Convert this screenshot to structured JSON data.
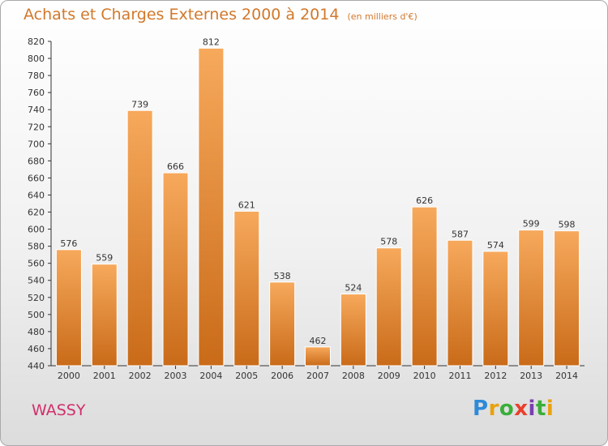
{
  "header": {
    "title": "Achats et Charges Externes 2000 à 2014",
    "unit": "(en milliers d'€)"
  },
  "footer": {
    "commune": "WASSY",
    "logo": "Proxiti"
  },
  "colors": {
    "bar_top": "#f7a95c",
    "bar_bottom": "#c96b19",
    "title": "#d2782a",
    "commune": "#d12f6b"
  },
  "chart_data": {
    "type": "bar",
    "title": "Achats et Charges Externes 2000 à 2014",
    "subtitle": "(en milliers d'€)",
    "categories": [
      "2000",
      "2001",
      "2002",
      "2003",
      "2004",
      "2005",
      "2006",
      "2007",
      "2008",
      "2009",
      "2010",
      "2011",
      "2012",
      "2013",
      "2014"
    ],
    "values": [
      576,
      559,
      739,
      666,
      812,
      621,
      538,
      462,
      524,
      578,
      626,
      587,
      574,
      599,
      598
    ],
    "ylim": [
      440,
      820
    ],
    "yticks": [
      440,
      460,
      480,
      500,
      520,
      540,
      560,
      580,
      600,
      620,
      640,
      660,
      680,
      700,
      720,
      740,
      760,
      780,
      800,
      820
    ],
    "grid": false,
    "legend": "none"
  }
}
